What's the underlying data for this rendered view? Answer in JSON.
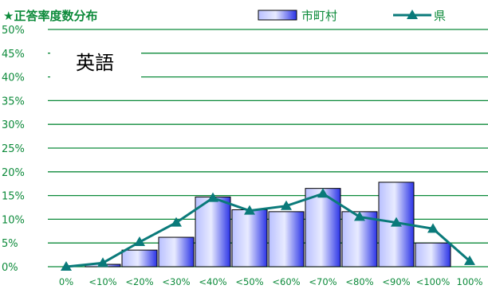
{
  "chart_data": {
    "type": "bar",
    "title": "★正答率度数分布",
    "subject_label": "英語",
    "categories": [
      "0%",
      "<10%",
      "<20%",
      "<30%",
      "<40%",
      "<50%",
      "<60%",
      "<70%",
      "<80%",
      "<90%",
      "<100%",
      "100%"
    ],
    "y_ticks": [
      "0%",
      "5%",
      "10%",
      "15%",
      "20%",
      "25%",
      "30%",
      "35%",
      "40%",
      "45%",
      "50%"
    ],
    "ylim": [
      0,
      50
    ],
    "grid": true,
    "legend_position": "top-right",
    "series": [
      {
        "name": "市町村",
        "kind": "bar",
        "values": [
          0,
          0.5,
          3.5,
          6.2,
          14.7,
          12.0,
          11.6,
          16.5,
          11.6,
          17.8,
          5.0,
          0
        ]
      },
      {
        "name": "県",
        "kind": "line",
        "values": [
          0,
          0.8,
          5.2,
          9.3,
          14.5,
          11.8,
          12.8,
          15.4,
          10.5,
          9.3,
          8.0,
          1.2
        ]
      }
    ],
    "colors": {
      "grid": "#0c8a3a",
      "axis_text": "#0c8a3a",
      "bar_light": "#e6e9ff",
      "bar_dark": "#2b34e8",
      "line": "#0a7a7a"
    }
  }
}
